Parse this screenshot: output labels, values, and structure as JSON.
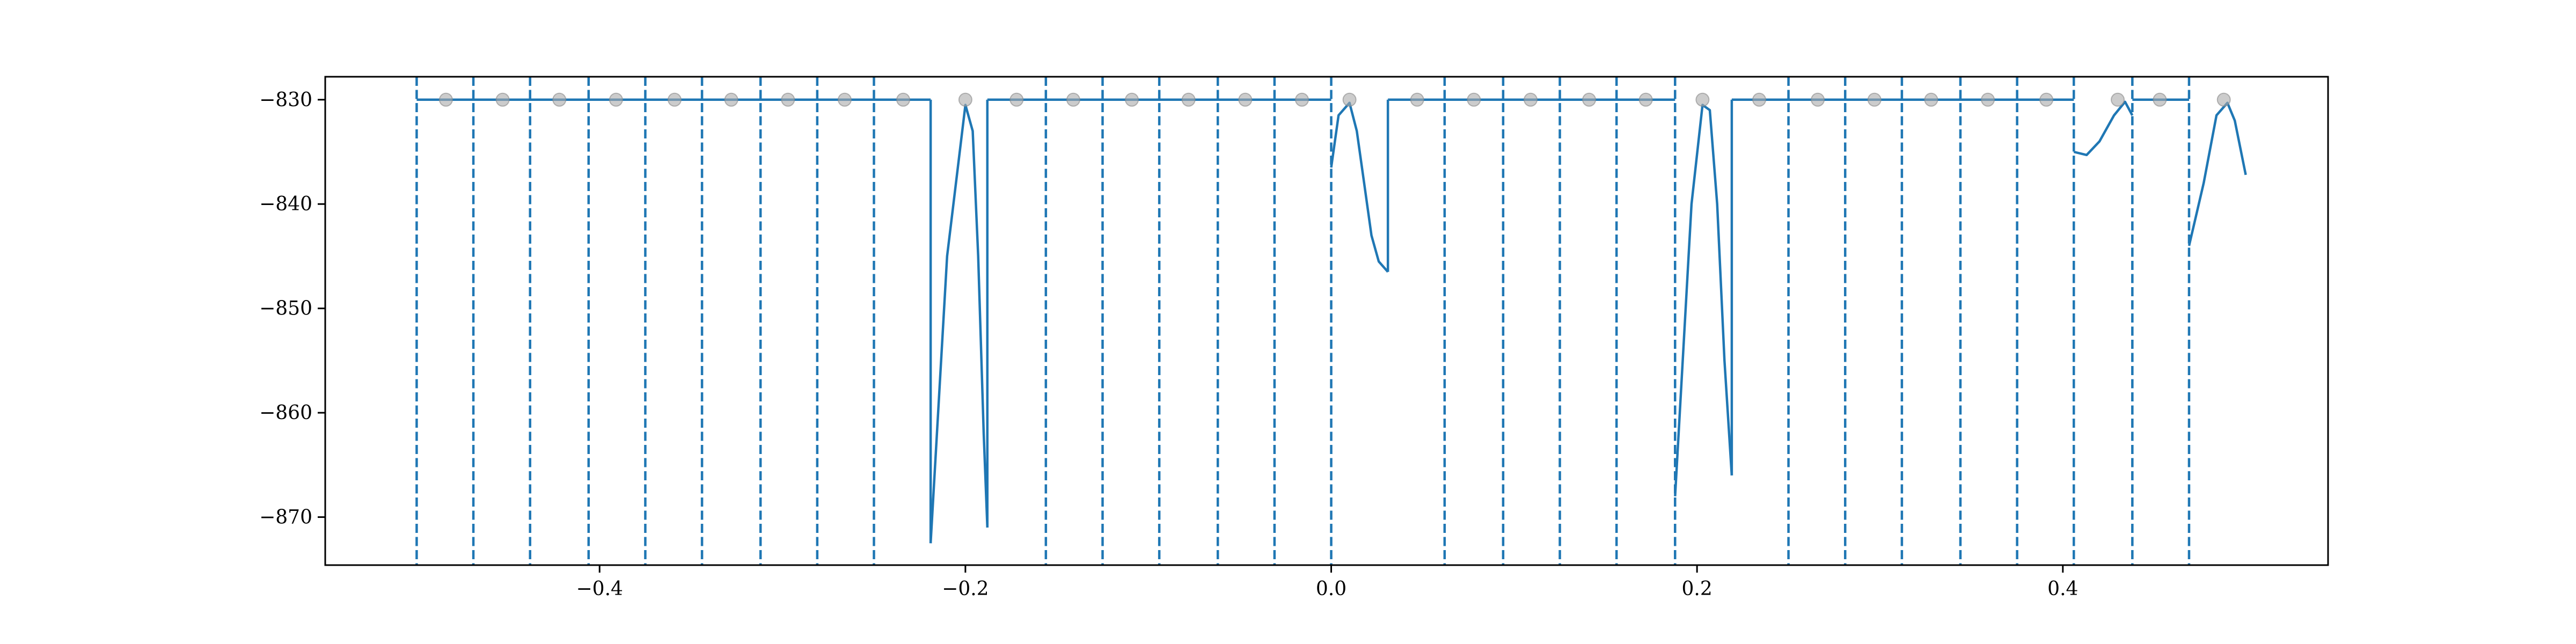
{
  "chart_data": {
    "type": "line",
    "title": "",
    "xlabel": "",
    "ylabel": "",
    "xlim": [
      -0.55,
      0.545
    ],
    "ylim": [
      -874.6,
      -827.8
    ],
    "grid": false,
    "legend": "none",
    "x_ticks": [
      {
        "value": -0.4,
        "label": "−0.4"
      },
      {
        "value": -0.2,
        "label": "−0.2"
      },
      {
        "value": 0.0,
        "label": "0.0"
      },
      {
        "value": 0.2,
        "label": "0.2"
      },
      {
        "value": 0.4,
        "label": "0.4"
      }
    ],
    "y_ticks": [
      {
        "value": -830,
        "label": "−830"
      },
      {
        "value": -840,
        "label": "−840"
      },
      {
        "value": -850,
        "label": "−850"
      },
      {
        "value": -860,
        "label": "−860"
      },
      {
        "value": -870,
        "label": "−870"
      }
    ],
    "colors": {
      "line": "#1f77b4",
      "marker": "#aaaaaa",
      "axes": "#000000"
    },
    "dashed_vlines": [
      -0.5,
      -0.469,
      -0.438,
      -0.406,
      -0.375,
      -0.344,
      -0.312,
      -0.281,
      -0.25,
      -0.156,
      -0.125,
      -0.094,
      -0.062,
      -0.031,
      0.0,
      0.062,
      0.094,
      0.125,
      0.156,
      0.188,
      0.25,
      0.281,
      0.312,
      0.344,
      0.375,
      0.406,
      0.438,
      0.469
    ],
    "solid_vlines": [
      {
        "x": -0.219,
        "y0": -830,
        "y1": -872.5
      },
      {
        "x": -0.188,
        "y0": -830,
        "y1": -871
      },
      {
        "x": 0.031,
        "y0": -830,
        "y1": -846.5
      },
      {
        "x": 0.219,
        "y0": -830,
        "y1": -866
      }
    ],
    "series": [
      {
        "x": [
          -0.5,
          -0.219
        ],
        "y": [
          -830,
          -830
        ]
      },
      {
        "x": [
          -0.219,
          -0.21,
          -0.2,
          -0.196,
          -0.193,
          -0.19,
          -0.188
        ],
        "y": [
          -872.5,
          -845,
          -830.5,
          -833,
          -845,
          -862,
          -871
        ]
      },
      {
        "x": [
          -0.188,
          0.0
        ],
        "y": [
          -830,
          -830
        ]
      },
      {
        "x": [
          0.0,
          0.004,
          0.01,
          0.014,
          0.018,
          0.022,
          0.026,
          0.031
        ],
        "y": [
          -836.5,
          -831.5,
          -830.3,
          -833,
          -838,
          -843,
          -845.5,
          -846.5
        ]
      },
      {
        "x": [
          0.031,
          0.188
        ],
        "y": [
          -830,
          -830
        ]
      },
      {
        "x": [
          0.188,
          0.197,
          0.203,
          0.207,
          0.211,
          0.215,
          0.219
        ],
        "y": [
          -868,
          -840,
          -830.5,
          -831,
          -840,
          -855,
          -866
        ]
      },
      {
        "x": [
          0.219,
          0.406
        ],
        "y": [
          -830,
          -830
        ]
      },
      {
        "x": [
          0.406,
          0.413,
          0.42,
          0.428,
          0.434,
          0.438
        ],
        "y": [
          -835,
          -835.3,
          -834,
          -831.5,
          -830.2,
          -831.5
        ]
      },
      {
        "x": [
          0.438,
          0.469
        ],
        "y": [
          -830,
          -830
        ]
      },
      {
        "x": [
          0.469,
          0.477,
          0.484,
          0.49,
          0.494,
          0.5
        ],
        "y": [
          -844,
          -838,
          -831.5,
          -830.3,
          -832,
          -837.2
        ]
      }
    ],
    "markers": [
      {
        "x": -0.484,
        "y": -830
      },
      {
        "x": -0.453,
        "y": -830
      },
      {
        "x": -0.422,
        "y": -830
      },
      {
        "x": -0.391,
        "y": -830
      },
      {
        "x": -0.359,
        "y": -830
      },
      {
        "x": -0.328,
        "y": -830
      },
      {
        "x": -0.297,
        "y": -830
      },
      {
        "x": -0.266,
        "y": -830
      },
      {
        "x": -0.234,
        "y": -830
      },
      {
        "x": -0.2,
        "y": -830
      },
      {
        "x": -0.172,
        "y": -830
      },
      {
        "x": -0.141,
        "y": -830
      },
      {
        "x": -0.109,
        "y": -830
      },
      {
        "x": -0.078,
        "y": -830
      },
      {
        "x": -0.047,
        "y": -830
      },
      {
        "x": -0.016,
        "y": -830
      },
      {
        "x": 0.01,
        "y": -830
      },
      {
        "x": 0.047,
        "y": -830
      },
      {
        "x": 0.078,
        "y": -830
      },
      {
        "x": 0.109,
        "y": -830
      },
      {
        "x": 0.141,
        "y": -830
      },
      {
        "x": 0.172,
        "y": -830
      },
      {
        "x": 0.203,
        "y": -830
      },
      {
        "x": 0.234,
        "y": -830
      },
      {
        "x": 0.266,
        "y": -830
      },
      {
        "x": 0.297,
        "y": -830
      },
      {
        "x": 0.328,
        "y": -830
      },
      {
        "x": 0.359,
        "y": -830
      },
      {
        "x": 0.391,
        "y": -830
      },
      {
        "x": 0.43,
        "y": -830
      },
      {
        "x": 0.453,
        "y": -830
      },
      {
        "x": 0.488,
        "y": -830
      }
    ]
  }
}
